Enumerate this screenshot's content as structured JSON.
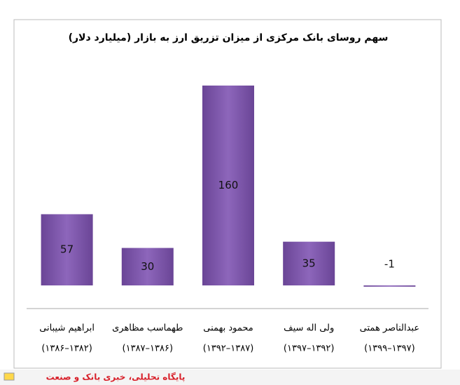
{
  "chart_data": {
    "type": "bar",
    "title": "سهم روسای بانک مرکزی از میزان تزریق ارز به بازار (میلیارد دلار)",
    "categories": [
      "ابراهیم شیبانی",
      "طهماسب مظاهری",
      "محمود بهمنی",
      "ولی اله سیف",
      "عبدالناصر همتی"
    ],
    "category_periods": [
      "(۱۳۸۲–۱۳۸۶)",
      "(۱۳۸۶–۱۳۸۷)",
      "(۱۳۸۷–۱۳۹۲)",
      "(۱۳۹۲–۱۳۹۷)",
      "(۱۳۹۷–۱۳۹۹)"
    ],
    "values": [
      57,
      30,
      160,
      35,
      -1
    ],
    "color": "#7b55a8"
  },
  "footer": {
    "source": "پایگاه تحلیلی، خبری بانک و صنعت"
  }
}
